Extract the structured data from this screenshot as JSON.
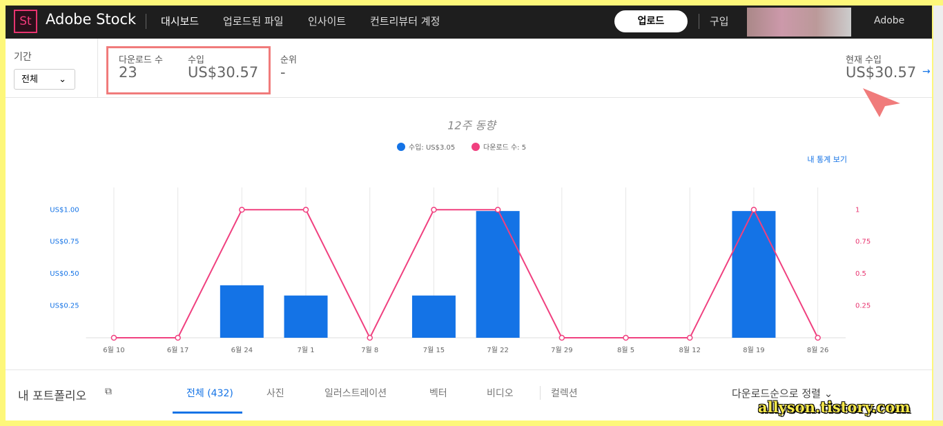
{
  "header": {
    "logo": "St",
    "brand": "Adobe Stock",
    "nav": [
      "대시보드",
      "업로드된 파일",
      "인사이트",
      "컨트리뷰터 계정"
    ],
    "upload": "업로드",
    "buy": "구입",
    "adobe": "Adobe"
  },
  "stats": {
    "period_label": "기간",
    "period_value": "전체",
    "downloads_label": "다운로드 수",
    "downloads_value": "23",
    "income_label": "수입",
    "income_value": "US$30.57",
    "rank_label": "순위",
    "rank_value": "-",
    "current_label": "현재 수입",
    "current_value": "US$30.57"
  },
  "chart_data": {
    "type": "bar",
    "title": "12주 동향",
    "link": "내 통계 보기",
    "categories": [
      "6월 10",
      "6월 17",
      "6월 24",
      "7월 1",
      "7월 8",
      "7월 15",
      "7월 22",
      "7월 29",
      "8월 5",
      "8월 12",
      "8월 19",
      "8월 26"
    ],
    "series": [
      {
        "name": "수입: US$3.05",
        "color": "#1473e6",
        "type": "bar",
        "values": [
          0,
          0,
          0.41,
          0.33,
          0,
          0.33,
          0.99,
          0,
          0,
          0,
          0.99,
          0
        ]
      },
      {
        "name": "다운로드 수: 5",
        "color": "#f0407f",
        "type": "line",
        "axis": "y2",
        "values": [
          0,
          0,
          1,
          1,
          0,
          1,
          1,
          0,
          0,
          0,
          1,
          0
        ]
      }
    ],
    "ylim": [
      0,
      1.12
    ],
    "yticks": [
      {
        "value": 0.25,
        "label": "US$0.25"
      },
      {
        "value": 0.5,
        "label": "US$0.50"
      },
      {
        "value": 0.75,
        "label": "US$0.75"
      },
      {
        "value": 1,
        "label": "US$1.00"
      }
    ],
    "y2lim": [
      0,
      1.12
    ],
    "y2ticks": [
      0.25,
      0.5,
      0.75,
      1
    ],
    "grid": true
  },
  "portfolio": {
    "title": "내 포트폴리오",
    "tabs": [
      "전체 (432)",
      "사진",
      "일러스트레이션",
      "벡터",
      "비디오",
      "컬렉션"
    ],
    "sort": "다운로드순으로 정렬"
  },
  "watermark": "allyson.tistory.com"
}
